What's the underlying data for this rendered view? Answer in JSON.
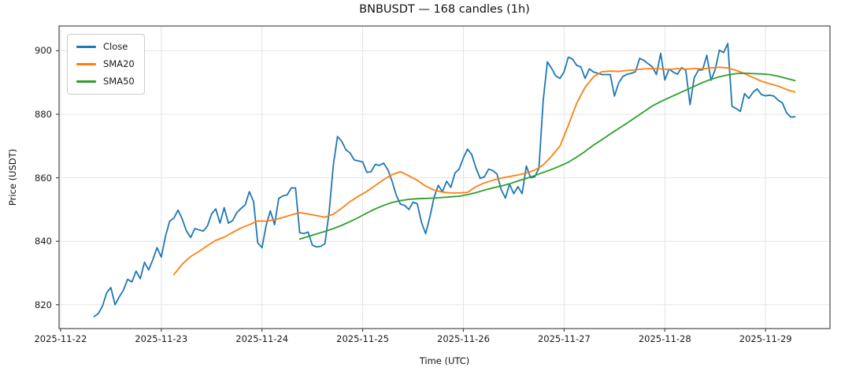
{
  "chart_data": {
    "type": "line",
    "title": "BNBUSDT — 168 candles (1h)",
    "xlabel": "Time (UTC)",
    "ylabel": "Price (USDT)",
    "grid": true,
    "legend_position": "upper left",
    "x_unit": "hours, 0 = first candle (2025-11-22 08:00 UTC)",
    "xlim": [
      -8.35,
      175.35
    ],
    "ylim": [
      812.5,
      907.8
    ],
    "x_ticks": {
      "positions": [
        -8,
        16,
        40,
        64,
        88,
        112,
        136,
        160
      ],
      "labels": [
        "2025-11-22",
        "2025-11-23",
        "2025-11-24",
        "2025-11-25",
        "2025-11-26",
        "2025-11-27",
        "2025-11-28",
        "2025-11-29"
      ]
    },
    "y_ticks": [
      820,
      840,
      860,
      880,
      900
    ],
    "grid_color": "#e4e4e4",
    "frame_color": "#4a4a4a",
    "series": [
      {
        "name": "Close",
        "color": "#1f77b4",
        "x_start": 0,
        "x_step": 1,
        "values": [
          816.3,
          817.2,
          819.6,
          823.8,
          825.4,
          820.0,
          822.5,
          824.6,
          828.0,
          827.2,
          830.6,
          828.2,
          833.4,
          831.0,
          834.2,
          838.0,
          835.0,
          841.5,
          846.3,
          847.3,
          849.8,
          847.0,
          843.3,
          841.2,
          844.0,
          843.6,
          843.2,
          844.8,
          848.6,
          850.2,
          845.7,
          850.6,
          845.7,
          846.5,
          849.0,
          850.3,
          851.5,
          855.6,
          852.5,
          839.5,
          838.0,
          845.0,
          849.6,
          845.2,
          853.5,
          854.3,
          854.6,
          856.8,
          856.8,
          842.7,
          842.4,
          842.9,
          838.8,
          838.2,
          838.4,
          839.2,
          849.0,
          864.0,
          873.0,
          871.5,
          868.8,
          867.8,
          865.6,
          865.3,
          865.0,
          861.7,
          861.9,
          864.2,
          863.9,
          864.6,
          862.5,
          858.9,
          854.5,
          851.7,
          851.3,
          850.0,
          852.3,
          851.8,
          846.0,
          842.4,
          847.5,
          853.8,
          857.6,
          855.6,
          858.9,
          857.0,
          861.5,
          862.8,
          866.3,
          869.0,
          867.3,
          863.0,
          859.8,
          860.3,
          862.7,
          862.3,
          861.2,
          856.3,
          853.6,
          858.0,
          855.0,
          857.2,
          855.0,
          863.7,
          860.0,
          860.3,
          863.0,
          884.0,
          896.5,
          894.5,
          892.1,
          891.3,
          893.4,
          898.0,
          897.4,
          895.4,
          894.9,
          891.3,
          894.3,
          893.3,
          892.9,
          892.5,
          892.5,
          892.5,
          885.7,
          889.9,
          891.9,
          892.6,
          892.9,
          893.4,
          897.6,
          897.0,
          895.9,
          895.0,
          892.5,
          899.2,
          890.8,
          894.2,
          893.3,
          892.6,
          894.7,
          893.8,
          883.0,
          891.5,
          893.9,
          894.0,
          898.6,
          890.7,
          894.0,
          900.2,
          899.4,
          902.3,
          882.5,
          881.8,
          880.9,
          886.5,
          885.0,
          886.9,
          888.0,
          886.2,
          885.8,
          886.0,
          885.7,
          884.4,
          883.6,
          880.5,
          879.1,
          879.2
        ]
      },
      {
        "name": "SMA20",
        "color": "#ff7f0e",
        "x": [
          19,
          21,
          23,
          25,
          27,
          29,
          31,
          33,
          35,
          37,
          39,
          41,
          43,
          45,
          47,
          49,
          51,
          53,
          55,
          57,
          59,
          61,
          63,
          65,
          67,
          69,
          71,
          73,
          75,
          77,
          79,
          81,
          83,
          85,
          87,
          89,
          91,
          93,
          95,
          97,
          99,
          101,
          103,
          105,
          107,
          109,
          111,
          113,
          115,
          117,
          119,
          121,
          123,
          125,
          127,
          129,
          131,
          133,
          135,
          137,
          139,
          141,
          143,
          145,
          147,
          149,
          151,
          153,
          155,
          157,
          159,
          161,
          163,
          165,
          167
        ],
        "values": [
          829.5,
          832.8,
          835.2,
          836.8,
          838.6,
          840.3,
          841.3,
          842.8,
          844.2,
          845.2,
          846.4,
          846.3,
          846.8,
          847.5,
          848.3,
          849.0,
          848.6,
          848.1,
          847.6,
          848.5,
          850.4,
          852.5,
          854.2,
          855.7,
          857.6,
          859.4,
          861.0,
          861.9,
          860.6,
          859.2,
          857.4,
          856.1,
          855.5,
          855.2,
          855.2,
          855.4,
          857.2,
          858.4,
          859.2,
          859.9,
          860.4,
          860.9,
          861.5,
          862.4,
          864.0,
          866.8,
          870.0,
          876.5,
          883.5,
          888.5,
          891.8,
          893.4,
          893.6,
          893.5,
          893.8,
          894.0,
          894.3,
          894.4,
          894.3,
          894.1,
          894.4,
          894.2,
          894.4,
          894.3,
          894.6,
          894.8,
          894.6,
          893.8,
          892.8,
          891.6,
          890.4,
          889.6,
          888.9,
          887.8,
          887.0
        ]
      },
      {
        "name": "SMA50",
        "color": "#2ca02c",
        "x": [
          49,
          51,
          53,
          55,
          57,
          59,
          61,
          63,
          65,
          67,
          69,
          71,
          73,
          75,
          77,
          79,
          81,
          83,
          85,
          87,
          89,
          91,
          93,
          95,
          97,
          99,
          101,
          103,
          105,
          107,
          109,
          111,
          113,
          115,
          117,
          119,
          121,
          123,
          125,
          127,
          129,
          131,
          133,
          135,
          137,
          139,
          141,
          143,
          145,
          147,
          149,
          151,
          153,
          155,
          157,
          159,
          161,
          163,
          165,
          167
        ],
        "values": [
          840.7,
          841.5,
          842.3,
          843.1,
          844.0,
          845.0,
          846.2,
          847.5,
          848.9,
          850.2,
          851.3,
          852.2,
          852.8,
          853.2,
          853.4,
          853.5,
          853.6,
          853.8,
          854.0,
          854.2,
          854.7,
          855.3,
          856.1,
          856.8,
          857.4,
          858.1,
          859.0,
          859.8,
          860.7,
          861.7,
          862.6,
          863.7,
          864.9,
          866.5,
          868.3,
          870.3,
          872.0,
          873.8,
          875.5,
          877.2,
          879.0,
          880.8,
          882.6,
          884.0,
          885.2,
          886.4,
          887.6,
          888.8,
          890.0,
          891.0,
          891.8,
          892.4,
          892.8,
          892.9,
          892.8,
          892.7,
          892.5,
          892.0,
          891.3,
          890.6
        ]
      }
    ]
  }
}
